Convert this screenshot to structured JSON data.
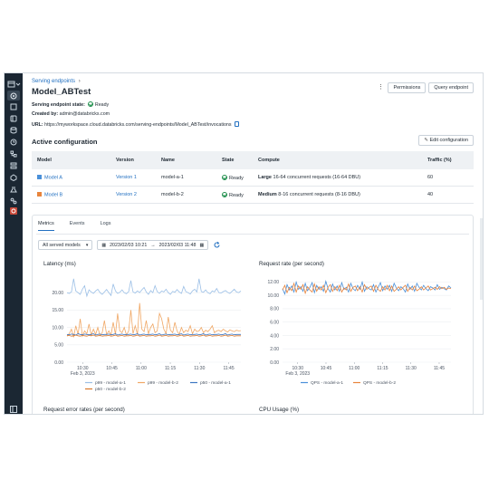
{
  "breadcrumb": {
    "label": "Serving endpoints",
    "chevron": "›"
  },
  "page": {
    "title": "Model_ABTest"
  },
  "header_buttons": {
    "kebab": "⋮",
    "permissions": "Permissions",
    "query": "Query endpoint"
  },
  "info": {
    "state_label": "Serving endpoint state:",
    "state_value": "Ready",
    "created_label": "Created by:",
    "created_value": "admin@databricks.com",
    "url_label": "URL:",
    "url_value": "https://myworkspace.cloud.databricks.com/serving-endpoints/Model_ABTest/invocations"
  },
  "config": {
    "title": "Active configuration",
    "edit_label": "Edit configuration",
    "edit_icon": "pencil-icon",
    "headers": [
      "Model",
      "Version",
      "Name",
      "State",
      "Compute",
      "Traffic (%)"
    ],
    "rows": [
      {
        "model": "Model A",
        "color": "#4a90d9",
        "version": "Version 1",
        "name": "model-a-1",
        "state": "Ready",
        "compute_bold": "Large",
        "compute_rest": " 16-64 concurrent requests (16-64 DBU)",
        "traffic": "60"
      },
      {
        "model": "Model B",
        "color": "#e8843c",
        "version": "Version 2",
        "name": "model-b-2",
        "state": "Ready",
        "compute_bold": "Medium",
        "compute_rest": " 8-16 concurrent requests (8-16 DBU)",
        "traffic": "40"
      }
    ]
  },
  "tabs": [
    "Metrics",
    "Events",
    "Logs"
  ],
  "filter": {
    "select_value": "All served models",
    "date_from": "2023/02/03 10:21",
    "arrow": "→",
    "date_to": "2023/02/03 11:48"
  },
  "colors": {
    "model_a_1": "#9bbfe6",
    "model_b_2": "#f0a765",
    "p50_a": "#3d76c2",
    "p50_b": "#d9782b"
  },
  "chart_data": [
    {
      "type": "line",
      "title": "Latency (ms)",
      "ylim": [
        0,
        25
      ],
      "yticks": [
        "0.00",
        "5.00",
        "10.00",
        "15.00",
        "20.00"
      ],
      "yvals": [
        0,
        5,
        10,
        15,
        20
      ],
      "xticks": [
        "10:30",
        "10:45",
        "11:00",
        "11:15",
        "11:30",
        "11:45"
      ],
      "xsub": "Feb 3, 2023",
      "series": [
        {
          "name": "p99 - model-a-1",
          "color": "#9bbfe6",
          "values": [
            20,
            19.8,
            20.2,
            24,
            20.5,
            20,
            19.5,
            21,
            22,
            19,
            20.8,
            20.2,
            19.8,
            20.5,
            21,
            20,
            19.5,
            20.2,
            20.9,
            20,
            19.2,
            22.5,
            20.5,
            19.8,
            20.1,
            20.8,
            20,
            19.7,
            20.3,
            23.5,
            20.2,
            19.9,
            20.5,
            20,
            20.8,
            21.5,
            20.2,
            19.5,
            20.6,
            20,
            22,
            20.3,
            19.8,
            20.5,
            20.2,
            21,
            20,
            19.5,
            20.4,
            20.1,
            20.9,
            20.2,
            19.8,
            21.8,
            20.3,
            20,
            19.6,
            20.5,
            21,
            20.2,
            24,
            20.3,
            20.1,
            20.8,
            20,
            19.7,
            20.5,
            20.2,
            21.2,
            20,
            19.9,
            20.3,
            20.6,
            20.1,
            19.8,
            20.4,
            21,
            20.2,
            20,
            20.5
          ]
        },
        {
          "name": "p99 - model-b-2",
          "color": "#f0a765",
          "values": [
            7.5,
            8.2,
            9.5,
            7.2,
            10.5,
            8,
            12.5,
            7.5,
            9,
            8.2,
            11,
            7.8,
            9.5,
            8,
            10,
            7.6,
            8.5,
            12,
            8,
            9,
            7.8,
            11.5,
            8,
            14,
            9,
            8.5,
            10,
            7.8,
            9,
            15,
            8.2,
            10.5,
            8,
            17,
            9.5,
            8.8,
            12,
            8.2,
            10,
            11,
            8.5,
            9,
            14,
            12.5,
            9.5,
            8.2,
            13,
            9.2,
            8.5,
            11.5,
            9,
            8,
            10,
            8.5,
            9.2,
            8.8,
            10.5,
            8.2,
            9.5,
            8.8,
            9,
            10,
            8.5,
            9.2,
            8.8,
            9.5,
            10.5,
            8.5,
            9,
            9.2,
            8.8,
            9.5,
            9,
            8.7,
            9.3,
            9,
            8.8,
            9.2,
            9,
            9.1
          ]
        },
        {
          "name": "p50 - model-a-1",
          "color": "#3d76c2",
          "values": [
            8,
            7.9,
            8.1,
            8,
            7.8,
            8.2,
            8,
            7.9,
            8.1,
            8,
            7.9,
            8,
            8.2,
            7.8,
            8,
            8.1,
            7.9,
            8,
            8,
            8.1,
            7.9,
            8,
            8.2,
            7.8,
            8,
            8.1,
            7.9,
            8,
            8,
            8.1,
            7.9,
            8,
            8.2,
            7.8,
            8,
            8.1,
            7.9,
            8,
            8,
            8.1,
            7.9,
            8,
            8.2,
            7.8,
            8,
            8.1,
            7.9,
            8,
            8,
            8.1,
            7.9,
            8,
            8.2,
            7.8,
            8,
            8.1,
            7.9,
            8,
            8,
            8.1,
            7.9,
            8,
            8.2,
            7.8,
            8,
            8.1,
            7.9,
            8,
            8,
            8.1,
            7.9,
            8,
            8.2,
            7.8,
            8,
            8.1,
            7.9,
            8,
            8,
            8
          ]
        },
        {
          "name": "p50 - model-b-2",
          "color": "#d9782b",
          "values": [
            7.6,
            7.7,
            7.5,
            7.6,
            7.8,
            7.6,
            7.5,
            7.7,
            7.6,
            7.5,
            7.7,
            7.6,
            7.8,
            7.5,
            7.6,
            7.7,
            7.5,
            7.6,
            7.6,
            7.7,
            7.5,
            7.6,
            7.8,
            7.5,
            7.6,
            7.7,
            7.5,
            7.6,
            7.6,
            7.7,
            7.5,
            7.6,
            7.8,
            7.5,
            7.6,
            7.7,
            7.5,
            7.6,
            7.6,
            7.7,
            7.5,
            7.6,
            7.8,
            7.5,
            7.6,
            7.7,
            7.5,
            7.6,
            7.6,
            7.7,
            7.5,
            7.6,
            7.8,
            7.5,
            7.6,
            7.7,
            7.5,
            7.6,
            7.6,
            7.7,
            7.5,
            7.6,
            7.8,
            7.5,
            7.6,
            7.7,
            7.5,
            7.6,
            7.6,
            7.7,
            7.5,
            7.6,
            7.8,
            7.5,
            7.6,
            7.7,
            7.5,
            7.6,
            7.6,
            7.6
          ]
        }
      ]
    },
    {
      "type": "line",
      "title": "Request rate (per second)",
      "ylim": [
        0,
        13
      ],
      "yticks": [
        "0.00",
        "2.00",
        "4.00",
        "6.00",
        "8.00",
        "10.00",
        "12.00"
      ],
      "yvals": [
        0,
        2,
        4,
        6,
        8,
        10,
        12
      ],
      "xticks": [
        "10:30",
        "10:45",
        "11:00",
        "11:15",
        "11:30",
        "11:45"
      ],
      "xsub": "Feb 3, 2023",
      "series": [
        {
          "name": "QPS - model-a-1",
          "color": "#4a90d9",
          "values": [
            11,
            10.2,
            11.6,
            10.8,
            11.4,
            10.5,
            12,
            10.9,
            11.3,
            10.6,
            11.8,
            10.7,
            11.2,
            11.9,
            10.4,
            11.5,
            10.9,
            11.3,
            10.6,
            12.1,
            11,
            10.5,
            11.7,
            10.8,
            11.4,
            10.6,
            11.9,
            10.9,
            11.2,
            10.5,
            11.8,
            11,
            10.7,
            11.5,
            10.9,
            12,
            10.6,
            11.3,
            11,
            10.8,
            11.6,
            10.5,
            11.2,
            11.9,
            10.7,
            11.4,
            10.9,
            11.5,
            10.6,
            11.8,
            11.1,
            10.7,
            11.3,
            11,
            10.5,
            11.7,
            10.9,
            11.4,
            10.6,
            11.8,
            11.2,
            10.8,
            11.5,
            11,
            10.7,
            11.3,
            11.1,
            10.8,
            11.6,
            10.9,
            11.2,
            11,
            10.8,
            11.4,
            11.1
          ]
        },
        {
          "name": "QPS - model-b-2",
          "color": "#e8843c",
          "values": [
            10.8,
            11.5,
            10.4,
            11.2,
            10.7,
            11.8,
            10.5,
            11.4,
            10.9,
            11.6,
            10.3,
            11.3,
            10.8,
            10.5,
            11.7,
            10.6,
            11.3,
            10.8,
            11.5,
            10.4,
            11.2,
            11.6,
            10.6,
            11.3,
            10.7,
            11.5,
            10.5,
            11.1,
            10.8,
            11.7,
            10.6,
            11.2,
            11.4,
            10.7,
            11.3,
            10.5,
            11.6,
            10.9,
            11.2,
            11.4,
            10.6,
            11.5,
            10.9,
            10.6,
            11.3,
            10.8,
            11.5,
            10.7,
            11.4,
            10.6,
            10.9,
            11.3,
            10.8,
            11.2,
            11.5,
            10.6,
            11.2,
            10.8,
            11.4,
            10.7,
            10.9,
            11.3,
            10.8,
            11.1,
            11.4,
            10.8,
            11,
            11.2,
            10.9,
            11.3,
            11,
            11.2,
            10.9,
            11.1,
            11
          ]
        }
      ]
    }
  ],
  "lower_titles": {
    "error_rates": "Request error rates (per second)",
    "cpu": "CPU Usage (%)"
  }
}
